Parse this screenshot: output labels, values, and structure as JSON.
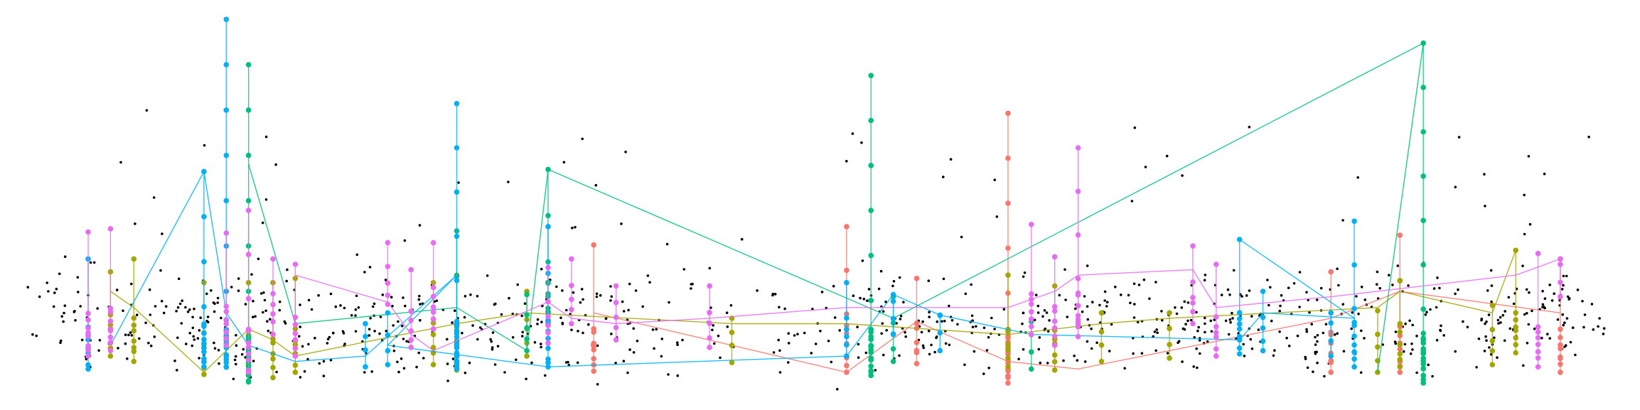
{
  "chart_data": {
    "type": "scatter",
    "title": "",
    "xlabel": "",
    "ylabel": "",
    "xlim": [
      0,
      1544
    ],
    "ylim": [
      0,
      380
    ],
    "grid": false,
    "legend": "none",
    "background_point_color": "#000000",
    "series": [
      {
        "color": "#F8766D",
        "columns": [
          [
            559,
            227,
            344
          ],
          [
            797,
            210,
            345
          ],
          [
            863,
            258,
            337
          ],
          [
            949,
            105,
            355
          ],
          [
            1253,
            252,
            345
          ],
          [
            1318,
            218,
            345
          ],
          [
            1469,
            240,
            345
          ]
        ],
        "path": [
          [
            559,
            290
          ],
          [
            797,
            345
          ],
          [
            863,
            298
          ],
          [
            949,
            335
          ],
          [
            1015,
            342
          ],
          [
            1253,
            295
          ],
          [
            1318,
            270
          ],
          [
            1469,
            290
          ]
        ]
      },
      {
        "color": "#A3A500",
        "columns": [
          [
            104,
            252,
            330
          ],
          [
            126,
            240,
            335
          ],
          [
            192,
            262,
            347
          ],
          [
            234,
            262,
            347
          ],
          [
            257,
            262,
            350
          ],
          [
            278,
            258,
            345
          ],
          [
            408,
            262,
            338
          ],
          [
            430,
            255,
            343
          ],
          [
            496,
            270,
            330
          ],
          [
            689,
            295,
            336
          ],
          [
            949,
            255,
            340
          ],
          [
            993,
            265,
            343
          ],
          [
            1037,
            290,
            335
          ],
          [
            1101,
            290,
            332
          ],
          [
            1297,
            288,
            345
          ],
          [
            1318,
            260,
            340
          ],
          [
            1405,
            283,
            338
          ],
          [
            1427,
            232,
            327
          ]
        ],
        "path": [
          [
            104,
            270
          ],
          [
            126,
            285
          ],
          [
            192,
            345
          ],
          [
            234,
            305
          ],
          [
            257,
            315
          ],
          [
            278,
            330
          ],
          [
            430,
            300
          ],
          [
            496,
            290
          ],
          [
            689,
            300
          ],
          [
            797,
            300
          ],
          [
            949,
            310
          ],
          [
            1037,
            300
          ],
          [
            1101,
            295
          ],
          [
            1297,
            285
          ],
          [
            1318,
            270
          ],
          [
            1405,
            290
          ],
          [
            1427,
            232
          ]
        ]
      },
      {
        "color": "#00BF7D",
        "columns": [
          [
            234,
            60,
            354
          ],
          [
            430,
            214,
            340
          ],
          [
            496,
            273,
            325
          ],
          [
            516,
            157,
            300
          ],
          [
            820,
            70,
            348
          ],
          [
            841,
            275,
            335
          ],
          [
            971,
            298,
            342
          ],
          [
            1340,
            40,
            355
          ]
        ],
        "path": [
          [
            234,
            152
          ],
          [
            278,
            300
          ],
          [
            430,
            285
          ],
          [
            496,
            325
          ],
          [
            516,
            157
          ],
          [
            841,
            295
          ],
          [
            1340,
            40
          ],
          [
            1297,
            345
          ]
        ]
      },
      {
        "color": "#00B0F6",
        "columns": [
          [
            83,
            240,
            342
          ],
          [
            192,
            159,
            340
          ],
          [
            213,
            18,
            340
          ],
          [
            344,
            300,
            340
          ],
          [
            365,
            290,
            338
          ],
          [
            430,
            96,
            342
          ],
          [
            516,
            210,
            340
          ],
          [
            797,
            262,
            330
          ],
          [
            841,
            273,
            310
          ],
          [
            885,
            292,
            325
          ],
          [
            1167,
            222,
            328
          ],
          [
            1189,
            270,
            325
          ],
          [
            1253,
            290,
            330
          ],
          [
            1275,
            205,
            340
          ]
        ],
        "path": [
          [
            104,
            320
          ],
          [
            192,
            159
          ],
          [
            213,
            290
          ],
          [
            234,
            320
          ],
          [
            278,
            335
          ],
          [
            344,
            330
          ],
          [
            430,
            255
          ],
          [
            365,
            320
          ],
          [
            516,
            340
          ],
          [
            797,
            330
          ],
          [
            841,
            273
          ],
          [
            885,
            292
          ],
          [
            971,
            310
          ],
          [
            1167,
            315
          ],
          [
            1189,
            290
          ],
          [
            1275,
            295
          ],
          [
            1167,
            222
          ]
        ]
      },
      {
        "color": "#E76BF3",
        "columns": [
          [
            83,
            215,
            330
          ],
          [
            104,
            212,
            325
          ],
          [
            213,
            216,
            320
          ],
          [
            234,
            195,
            345
          ],
          [
            257,
            240,
            310
          ],
          [
            278,
            245,
            330
          ],
          [
            365,
            225,
            282
          ],
          [
            387,
            250,
            322
          ],
          [
            408,
            225,
            305
          ],
          [
            516,
            248,
            318
          ],
          [
            538,
            240,
            300
          ],
          [
            580,
            265,
            315
          ],
          [
            668,
            265,
            322
          ],
          [
            971,
            208,
            310
          ],
          [
            993,
            238,
            320
          ],
          [
            1015,
            137,
            312
          ],
          [
            1123,
            228,
            300
          ],
          [
            1145,
            245,
            330
          ],
          [
            1448,
            235,
            340
          ],
          [
            1469,
            240,
            275
          ]
        ],
        "path": [
          [
            278,
            255
          ],
          [
            365,
            280
          ],
          [
            387,
            310
          ],
          [
            408,
            325
          ],
          [
            516,
            280
          ],
          [
            538,
            295
          ],
          [
            580,
            300
          ],
          [
            668,
            295
          ],
          [
            797,
            285
          ],
          [
            949,
            285
          ],
          [
            993,
            270
          ],
          [
            1015,
            255
          ],
          [
            1123,
            250
          ],
          [
            1145,
            285
          ],
          [
            1253,
            275
          ],
          [
            1427,
            255
          ],
          [
            1469,
            240
          ]
        ]
      }
    ]
  }
}
